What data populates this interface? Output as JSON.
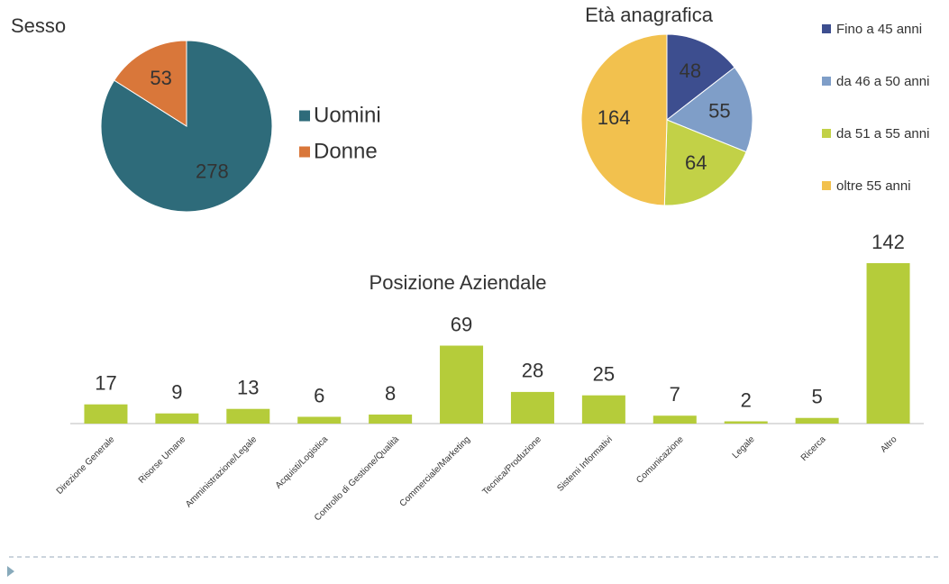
{
  "chart_data": [
    {
      "type": "pie",
      "title": "Sesso",
      "categories": [
        "Uomini",
        "Donne"
      ],
      "values": [
        278,
        53
      ],
      "colors": [
        "#2e6b7a",
        "#d9773a"
      ]
    },
    {
      "type": "pie",
      "title": "Età anagrafica",
      "categories": [
        "Fino a 45 anni",
        "da 46 a 50 anni",
        "da 51 a 55 anni",
        "oltre 55 anni"
      ],
      "values": [
        48,
        55,
        64,
        164
      ],
      "colors": [
        "#3d4e8f",
        "#7f9ec8",
        "#c2d147",
        "#f2c14e"
      ]
    },
    {
      "type": "bar",
      "title": "Posizione Aziendale",
      "categories": [
        "Direzione Generale",
        "Risorse Umane",
        "Amministrazione/Legale",
        "Acquisti/Logistica",
        "Controllo di Gestione/Qualità",
        "Commerciale/Marketing",
        "Tecnica/Produzione",
        "Sistemi Informativi",
        "Comunicazione",
        "Legale",
        "Ricerca",
        "Altro"
      ],
      "values": [
        17,
        9,
        13,
        6,
        8,
        69,
        28,
        25,
        7,
        2,
        5,
        142
      ],
      "color": "#b5cc3a"
    }
  ]
}
